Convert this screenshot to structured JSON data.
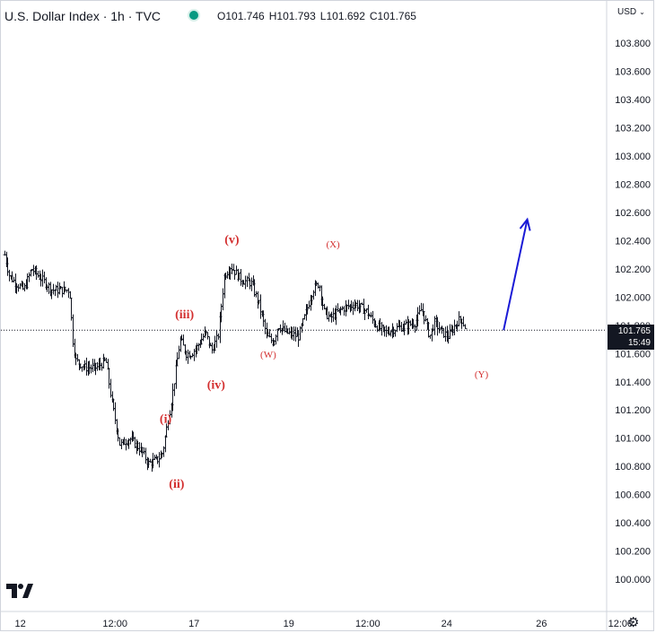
{
  "header": {
    "title": "U.S. Dollar Index · 1h · TVC",
    "ohlc": [
      {
        "key": "O",
        "value": "101.746"
      },
      {
        "key": "H",
        "value": "101.793"
      },
      {
        "key": "L",
        "value": "101.692"
      },
      {
        "key": "C",
        "value": "101.765"
      }
    ],
    "status_color": "#089981"
  },
  "price_scale": {
    "currency": "USD"
  },
  "current_price": {
    "value": "101.765",
    "countdown": "15:49"
  },
  "icons": {
    "logo": "tradingview-logo-icon",
    "settings": "gear-icon",
    "currency_dropdown": "chevron-down-icon"
  },
  "chart_data": {
    "type": "candlestick",
    "title": "U.S. Dollar Index · 1h · TVC",
    "y_ticks": [
      "103.800",
      "103.600",
      "103.400",
      "103.200",
      "103.000",
      "102.800",
      "102.600",
      "102.400",
      "102.200",
      "102.000",
      "101.800",
      "101.600",
      "101.400",
      "101.200",
      "101.000",
      "100.800",
      "100.600",
      "100.400",
      "100.200",
      "100.000"
    ],
    "ylim": [
      99.91,
      104.12
    ],
    "x_ticks": [
      {
        "label": "12",
        "x": 0.5
      },
      {
        "label": "12:00",
        "x": 3.5
      },
      {
        "label": "17",
        "x": 6.0
      },
      {
        "label": "19",
        "x": 9.0
      },
      {
        "label": "12:00",
        "x": 11.5
      },
      {
        "label": "24",
        "x": 14.0
      },
      {
        "label": "26",
        "x": 17.0
      },
      {
        "label": "12:00",
        "x": 19.5
      }
    ],
    "xlim": [
      0,
      19.9
    ],
    "last_price": 101.765,
    "price_path": [
      [
        0.0,
        102.3
      ],
      [
        0.15,
        102.15
      ],
      [
        0.35,
        102.1
      ],
      [
        0.6,
        102.05
      ],
      [
        0.85,
        102.2
      ],
      [
        1.2,
        102.12
      ],
      [
        1.5,
        102.05
      ],
      [
        1.85,
        102.05
      ],
      [
        2.05,
        102.05
      ],
      [
        2.15,
        101.7
      ],
      [
        2.25,
        101.55
      ],
      [
        2.55,
        101.5
      ],
      [
        2.9,
        101.5
      ],
      [
        3.2,
        101.55
      ],
      [
        3.4,
        101.25
      ],
      [
        3.65,
        100.95
      ],
      [
        3.95,
        101.0
      ],
      [
        4.3,
        100.92
      ],
      [
        4.55,
        100.82
      ],
      [
        4.85,
        100.85
      ],
      [
        5.0,
        100.9
      ],
      [
        5.3,
        101.3
      ],
      [
        5.55,
        101.7
      ],
      [
        5.75,
        101.6
      ],
      [
        5.9,
        101.6
      ],
      [
        6.1,
        101.65
      ],
      [
        6.35,
        101.75
      ],
      [
        6.55,
        101.62
      ],
      [
        6.75,
        101.72
      ],
      [
        6.95,
        102.15
      ],
      [
        7.15,
        102.22
      ],
      [
        7.5,
        102.12
      ],
      [
        7.8,
        102.1
      ],
      [
        8.05,
        101.95
      ],
      [
        8.3,
        101.72
      ],
      [
        8.5,
        101.68
      ],
      [
        8.65,
        101.8
      ],
      [
        8.9,
        101.75
      ],
      [
        9.3,
        101.72
      ],
      [
        9.55,
        101.9
      ],
      [
        9.75,
        102.05
      ],
      [
        9.95,
        102.1
      ],
      [
        10.1,
        101.9
      ],
      [
        10.3,
        101.85
      ],
      [
        10.7,
        101.92
      ],
      [
        11.1,
        101.95
      ],
      [
        11.45,
        101.9
      ],
      [
        11.75,
        101.8
      ],
      [
        12.05,
        101.75
      ],
      [
        12.4,
        101.78
      ],
      [
        12.75,
        101.8
      ],
      [
        13.0,
        101.82
      ],
      [
        13.2,
        101.92
      ],
      [
        13.45,
        101.72
      ],
      [
        13.6,
        101.82
      ],
      [
        13.85,
        101.75
      ],
      [
        14.05,
        101.72
      ],
      [
        14.3,
        101.82
      ],
      [
        14.45,
        101.85
      ],
      [
        14.6,
        101.77
      ]
    ],
    "projection": {
      "from": [
        15.8,
        101.765
      ],
      "to": [
        16.55,
        102.55
      ]
    },
    "wave_labels": [
      {
        "text": "(v)",
        "x": 7.2,
        "y": 102.38,
        "size": "large"
      },
      {
        "text": "(iii)",
        "x": 5.7,
        "y": 101.85,
        "size": "large"
      },
      {
        "text": "(iv)",
        "x": 6.7,
        "y": 101.35,
        "size": "large"
      },
      {
        "text": "(i)",
        "x": 5.1,
        "y": 101.11,
        "size": "large"
      },
      {
        "text": "(ii)",
        "x": 5.45,
        "y": 100.65,
        "size": "large"
      },
      {
        "text": "(X)",
        "x": 10.4,
        "y": 102.35,
        "size": "small"
      },
      {
        "text": "(W)",
        "x": 8.35,
        "y": 101.57,
        "size": "small"
      },
      {
        "text": "(Y)",
        "x": 15.1,
        "y": 101.43,
        "size": "small"
      }
    ],
    "colors": {
      "bars": "#131722",
      "waves": "#d32f2f",
      "projection": "#1a1ad6",
      "grid": "#e0e3eb"
    }
  }
}
